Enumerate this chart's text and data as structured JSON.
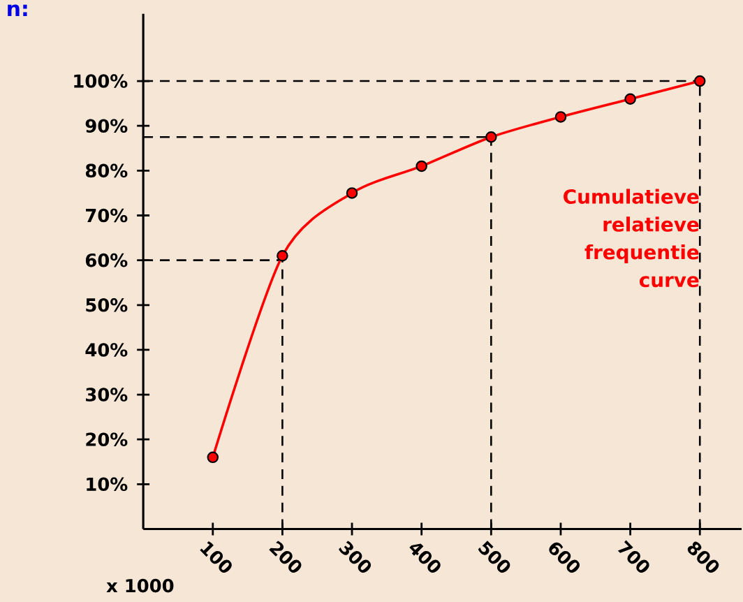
{
  "chart_data": {
    "type": "line",
    "title": "n:",
    "xlabel": "x 1000",
    "x": [
      100,
      200,
      300,
      400,
      500,
      600,
      700,
      800
    ],
    "series": [
      {
        "name": "Cumulatieve relatieve frequentie curve",
        "color": "#ff0000",
        "values": [
          16,
          61,
          75,
          81,
          87.5,
          92,
          96,
          100
        ]
      }
    ],
    "xlim": [
      0,
      860
    ],
    "ylim": [
      0,
      115
    ],
    "xticks": [
      100,
      200,
      300,
      400,
      500,
      600,
      700,
      800
    ],
    "yticks": [
      {
        "value": 10,
        "label": "10%"
      },
      {
        "value": 20,
        "label": "20%"
      },
      {
        "value": 30,
        "label": "30%"
      },
      {
        "value": 40,
        "label": "40%"
      },
      {
        "value": 50,
        "label": "50%"
      },
      {
        "value": 60,
        "label": "60%"
      },
      {
        "value": 70,
        "label": "70%"
      },
      {
        "value": 80,
        "label": "80%"
      },
      {
        "value": 90,
        "label": "90%"
      },
      {
        "value": 100,
        "label": "100%"
      }
    ],
    "ref_lines": [
      {
        "axis": "y",
        "value": 60,
        "color": "#000000",
        "line_style": "dashed"
      },
      {
        "axis": "y",
        "value": 87.5,
        "color": "#000000",
        "line_style": "dashed"
      },
      {
        "axis": "y",
        "value": 100,
        "color": "#000000",
        "line_style": "dashed"
      },
      {
        "axis": "x",
        "value": 200,
        "color": "#000000",
        "line_style": "dashed"
      },
      {
        "axis": "x",
        "value": 500,
        "color": "#000000",
        "line_style": "dashed"
      },
      {
        "axis": "x",
        "value": 800,
        "color": "#000000",
        "line_style": "dashed"
      }
    ],
    "grid": false,
    "marker": "circle",
    "line_style": "solid"
  }
}
